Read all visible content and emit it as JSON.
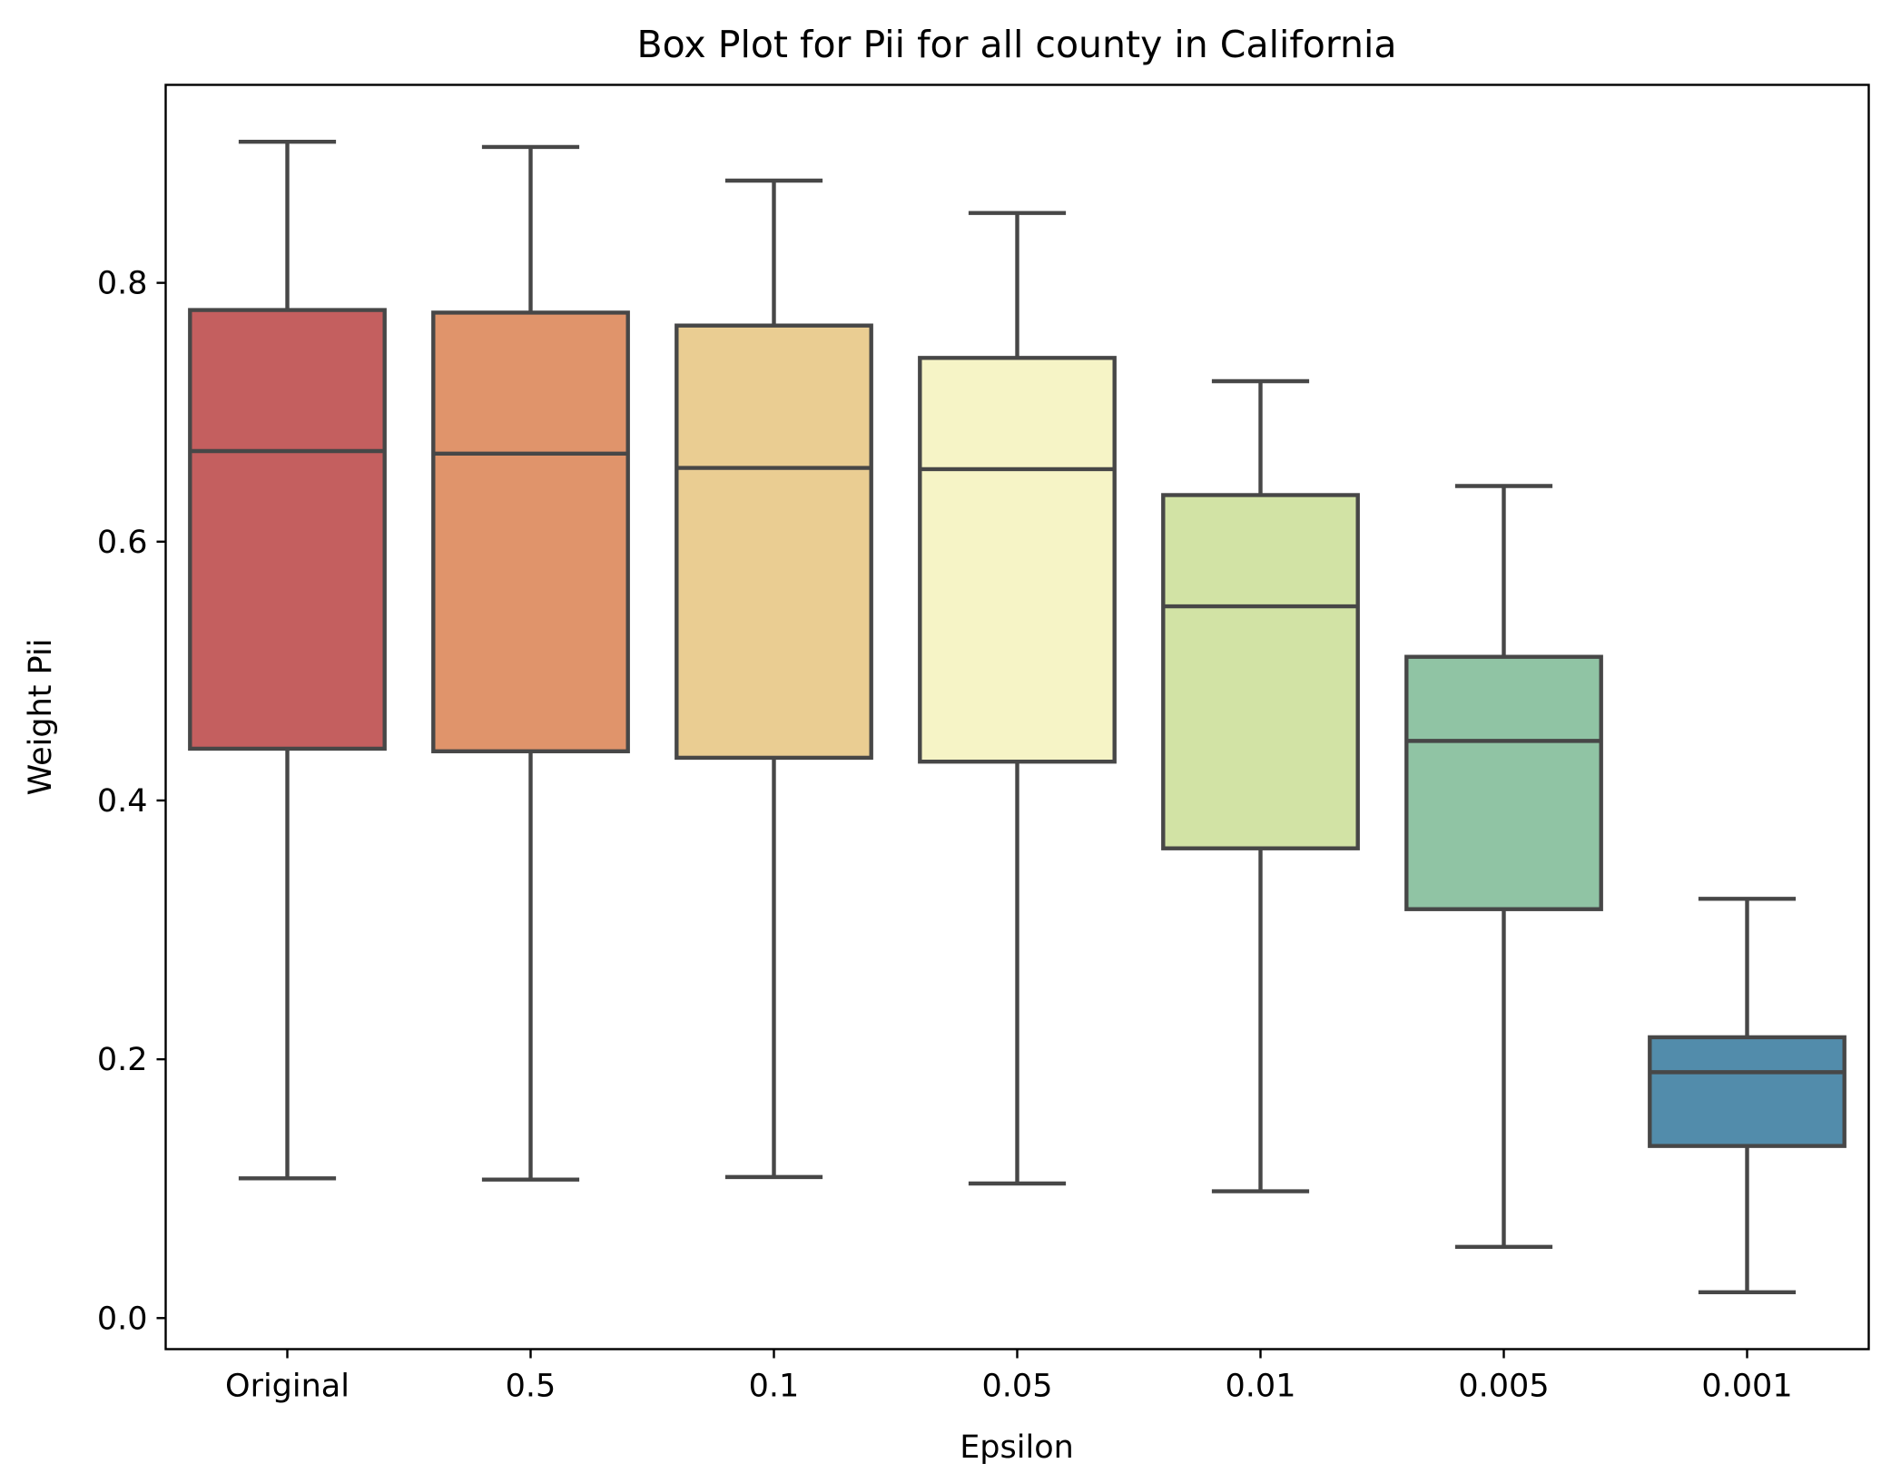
{
  "chart_data": {
    "type": "box",
    "title": "Box Plot for Pii for all county in California",
    "xlabel": "Epsilon",
    "ylabel": "Weight Pii",
    "categories": [
      "Original",
      "0.5",
      "0.1",
      "0.05",
      "0.01",
      "0.005",
      "0.001"
    ],
    "boxes": [
      {
        "category": "Original",
        "whisker_low": 0.108,
        "q1": 0.44,
        "median": 0.67,
        "q3": 0.779,
        "whisker_high": 0.909,
        "color": "#c45f5f"
      },
      {
        "category": "0.5",
        "whisker_low": 0.107,
        "q1": 0.438,
        "median": 0.668,
        "q3": 0.777,
        "whisker_high": 0.905,
        "color": "#e0946b"
      },
      {
        "category": "0.1",
        "whisker_low": 0.109,
        "q1": 0.433,
        "median": 0.657,
        "q3": 0.767,
        "whisker_high": 0.879,
        "color": "#eacd92"
      },
      {
        "category": "0.05",
        "whisker_low": 0.104,
        "q1": 0.43,
        "median": 0.656,
        "q3": 0.742,
        "whisker_high": 0.854,
        "color": "#f6f4c6"
      },
      {
        "category": "0.01",
        "whisker_low": 0.098,
        "q1": 0.363,
        "median": 0.55,
        "q3": 0.636,
        "whisker_high": 0.724,
        "color": "#d2e3a5"
      },
      {
        "category": "0.005",
        "whisker_low": 0.055,
        "q1": 0.316,
        "median": 0.446,
        "q3": 0.511,
        "whisker_high": 0.643,
        "color": "#90c4a4"
      },
      {
        "category": "0.001",
        "whisker_low": 0.02,
        "q1": 0.133,
        "median": 0.19,
        "q3": 0.217,
        "whisker_high": 0.324,
        "color": "#528cab"
      }
    ],
    "yticks": [
      0.0,
      0.2,
      0.4,
      0.6,
      0.8
    ],
    "ytick_labels": [
      "0.0",
      "0.2",
      "0.4",
      "0.6",
      "0.8"
    ],
    "ylim": [
      -0.024,
      0.953
    ],
    "grid": false,
    "legend": "none",
    "line_color": "#474747"
  }
}
